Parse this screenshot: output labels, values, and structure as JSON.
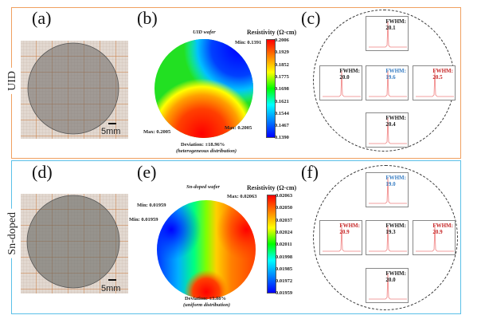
{
  "rows": [
    {
      "label": "UID",
      "border_color": "#f0a060",
      "photo_label": "(a)",
      "scale": "5mm",
      "map_label": "(b)",
      "map": {
        "title": "UID wafer",
        "colorbar_title": "Resistivity (Ω·cm)",
        "ticks": [
          "0.2006",
          "0.1929",
          "0.1852",
          "0.1775",
          "0.1698",
          "0.1621",
          "0.1544",
          "0.1467",
          "0.1390"
        ],
        "annotations": [
          "Min: 0.1391",
          "Max: 0.2005",
          "Max: 0.2005"
        ],
        "deviation": "Deviation: ±18.96%",
        "distribution": "(heterogeneous distribution)"
      },
      "xrd_label": "(c)",
      "xrd": [
        {
          "pos": "top",
          "fwhm_label": "FWHM:",
          "value": "20.1",
          "color": "#222222"
        },
        {
          "pos": "left",
          "fwhm_label": "FWHM:",
          "value": "20.0",
          "color": "#222222"
        },
        {
          "pos": "center",
          "fwhm_label": "FWHM:",
          "value": "19.6",
          "color": "#3a7fc4"
        },
        {
          "pos": "right",
          "fwhm_label": "FWHM:",
          "value": "20.5",
          "color": "#c62828"
        },
        {
          "pos": "bottom",
          "fwhm_label": "FWHM:",
          "value": "20.4",
          "color": "#222222"
        }
      ]
    },
    {
      "label": "Sn-doped",
      "border_color": "#5bc0e8",
      "photo_label": "(d)",
      "scale": "5mm",
      "map_label": "(e)",
      "map": {
        "title": "Sn-doped wafer",
        "colorbar_title": "Resistivity (Ω·cm)",
        "ticks": [
          "0.02063",
          "0.02050",
          "0.02037",
          "0.02024",
          "0.02011",
          "0.01998",
          "0.01985",
          "0.01972",
          "0.01959"
        ],
        "annotations": [
          "Min: 0.01959",
          "Min: 0.01959",
          "Max: 0.02063"
        ],
        "deviation": "Deviation: ±3.08%",
        "distribution": "(uniform distribution)"
      },
      "xrd_label": "(f)",
      "xrd": [
        {
          "pos": "top",
          "fwhm_label": "FWHM:",
          "value": "19.0",
          "color": "#3a7fc4"
        },
        {
          "pos": "left",
          "fwhm_label": "FWHM:",
          "value": "20.9",
          "color": "#c62828"
        },
        {
          "pos": "center",
          "fwhm_label": "FWHM:",
          "value": "19.3",
          "color": "#222222"
        },
        {
          "pos": "right",
          "fwhm_label": "FWHM:",
          "value": "20.9",
          "color": "#c62828"
        },
        {
          "pos": "bottom",
          "fwhm_label": "FWHM:",
          "value": "20.0",
          "color": "#222222"
        }
      ]
    }
  ]
}
